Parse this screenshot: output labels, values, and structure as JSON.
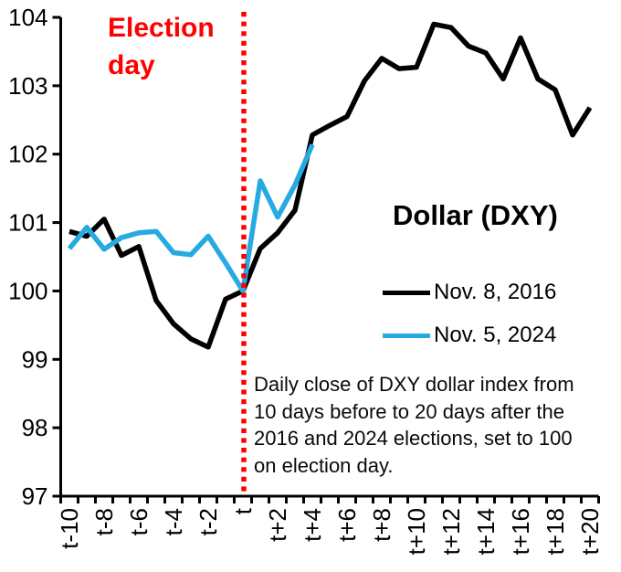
{
  "annotations": {
    "election_day": [
      "Election",
      "day"
    ]
  },
  "caption_lines": [
    "Daily close of DXY dollar index from",
    "10 days before to 20 days after the",
    "2016 and 2024 elections, set to 100",
    "on election day."
  ],
  "colors": {
    "series_2016": "#000000",
    "series_2024": "#27AAE1",
    "election_line": "#FF0000",
    "election_text": "#FF0000",
    "axis": "#000000"
  },
  "chart_data": {
    "type": "line",
    "title": "Dollar (DXY)",
    "xlabel": "",
    "ylabel": "",
    "x_unit": "trading days relative to election day",
    "x_range": [
      -10,
      20
    ],
    "x_tick_labels": [
      "t-10",
      "t-8",
      "t-6",
      "t-4",
      "t-2",
      "t",
      "t+2",
      "t+4",
      "t+6",
      "t+8",
      "t+10",
      "t+12",
      "t+14",
      "t+16",
      "t+18",
      "t+20"
    ],
    "ylim": [
      97,
      104
    ],
    "y_ticks": [
      97,
      98,
      99,
      100,
      101,
      102,
      103,
      104
    ],
    "grid": false,
    "legend_position": "right-middle",
    "series": [
      {
        "name": "Nov. 8, 2016",
        "color": "#000000",
        "start_day": -10,
        "values": [
          100.87,
          100.8,
          101.05,
          100.52,
          100.65,
          99.86,
          99.52,
          99.3,
          99.18,
          99.88,
          100.0,
          100.62,
          100.85,
          101.18,
          102.28,
          102.42,
          102.55,
          103.07,
          103.4,
          103.25,
          103.27,
          103.9,
          103.85,
          103.58,
          103.48,
          103.1,
          103.7,
          103.1,
          102.94,
          102.28,
          102.68
        ]
      },
      {
        "name": "Nov. 5, 2024",
        "color": "#27AAE1",
        "start_day": -10,
        "values": [
          100.62,
          100.93,
          100.61,
          100.78,
          100.85,
          100.87,
          100.56,
          100.53,
          100.8,
          100.41,
          100.0,
          101.61,
          101.08,
          101.55,
          102.14
        ]
      }
    ],
    "vline": {
      "day": 0,
      "style": "dotted",
      "color": "#FF0000",
      "label": "Election day"
    }
  }
}
